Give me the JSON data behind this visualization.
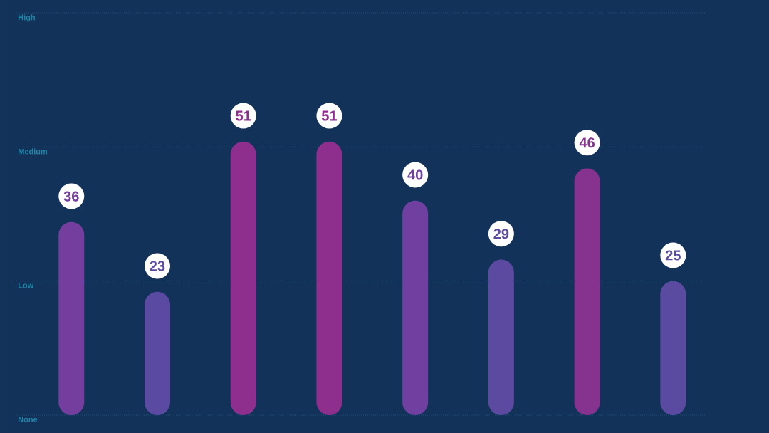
{
  "chart_data": {
    "type": "bar",
    "categories": [
      null,
      null,
      null,
      null,
      null,
      null,
      null,
      null
    ],
    "values": [
      36,
      23,
      51,
      51,
      40,
      29,
      46,
      25
    ],
    "colors": [
      "#733e9e",
      "#5b4aa1",
      "#8e2f8e",
      "#8e2f8e",
      "#6f409f",
      "#5b4aa0",
      "#86338f",
      "#5a4ba0"
    ],
    "ylim": [
      0,
      75
    ],
    "ref_lines": [
      {
        "axis": "y",
        "value": 0,
        "label": "None",
        "color": "#2e6a94",
        "line_style": "dotted"
      },
      {
        "axis": "y",
        "value": 25,
        "label": "Low",
        "color": "#2e6a94",
        "line_style": "dotted"
      },
      {
        "axis": "y",
        "value": 50,
        "label": "Medium",
        "color": "#2e6a94",
        "line_style": "dotted"
      },
      {
        "axis": "y",
        "value": 75,
        "label": "High",
        "color": "#2e6a94",
        "line_style": "dotted"
      }
    ],
    "data_labels": true
  }
}
